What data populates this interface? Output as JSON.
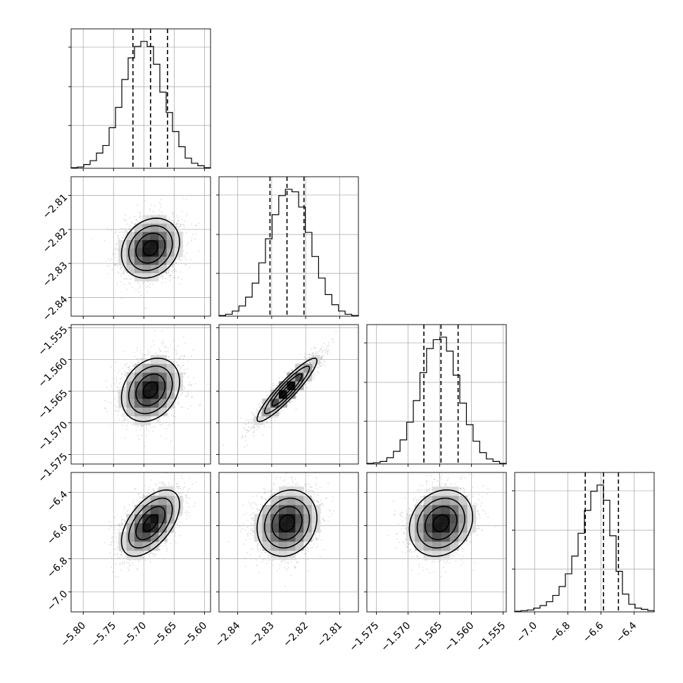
{
  "chart_data": {
    "type": "corner",
    "parameters": [
      {
        "range": [
          -5.82,
          -5.59
        ],
        "ticks": [
          -5.8,
          -5.75,
          -5.7,
          -5.65,
          -5.6
        ],
        "tick_labels": [
          "−5.80",
          "−5.75",
          "−5.70",
          "−5.65",
          "−5.60"
        ],
        "median": -5.689,
        "sigma": 0.024,
        "quantiles": [
          -5.718,
          -5.689,
          -5.661
        ],
        "histogram": [
          0.005,
          0.01,
          0.03,
          0.06,
          0.12,
          0.18,
          0.32,
          0.48,
          0.7,
          0.87,
          0.96,
          1.0,
          0.96,
          0.82,
          0.6,
          0.44,
          0.29,
          0.17,
          0.08,
          0.04,
          0.02,
          0.005
        ]
      },
      {
        "range": [
          -2.8455,
          -2.8045
        ],
        "ticks": [
          -2.84,
          -2.83,
          -2.82,
          -2.81
        ],
        "tick_labels": [
          "−2.84",
          "−2.83",
          "−2.82",
          "−2.81"
        ],
        "median": -2.8255,
        "sigma": 0.0044,
        "quantiles": [
          -2.8305,
          -2.8255,
          -2.8205
        ],
        "histogram": [
          0.005,
          0.015,
          0.04,
          0.08,
          0.15,
          0.26,
          0.42,
          0.61,
          0.8,
          0.95,
          1.0,
          0.98,
          0.86,
          0.66,
          0.47,
          0.3,
          0.17,
          0.09,
          0.04,
          0.015,
          0.005
        ]
      },
      {
        "range": [
          -1.5765,
          -1.5545
        ],
        "ticks": [
          -1.575,
          -1.57,
          -1.565,
          -1.56,
          -1.555
        ],
        "tick_labels": [
          "−1.575",
          "−1.570",
          "−1.565",
          "−1.560",
          "−1.555"
        ],
        "median": -1.5648,
        "sigma": 0.0025,
        "quantiles": [
          -1.5675,
          -1.5648,
          -1.5621
        ],
        "histogram": [
          0.005,
          0.01,
          0.02,
          0.05,
          0.1,
          0.19,
          0.33,
          0.5,
          0.72,
          0.91,
          0.98,
          1.0,
          0.89,
          0.7,
          0.48,
          0.31,
          0.18,
          0.09,
          0.04,
          0.02,
          0.005
        ]
      },
      {
        "range": [
          -7.12,
          -6.28
        ],
        "ticks": [
          -7.0,
          -6.8,
          -6.6,
          -6.4
        ],
        "tick_labels": [
          "−7.0",
          "−6.8",
          "−6.6",
          "−6.4"
        ],
        "median": -6.585,
        "sigma": 0.1,
        "quantiles": [
          -6.695,
          -6.585,
          -6.495
        ],
        "histogram": [
          0.005,
          0.01,
          0.015,
          0.03,
          0.05,
          0.08,
          0.13,
          0.2,
          0.3,
          0.44,
          0.62,
          0.8,
          0.95,
          1.0,
          0.88,
          0.6,
          0.32,
          0.14,
          0.06,
          0.03,
          0.02,
          0.01
        ]
      }
    ],
    "correlations": {
      "1-0": 0.2,
      "2-0": 0.25,
      "2-1": 0.92,
      "3-0": 0.55,
      "3-1": 0.15,
      "3-2": 0.18
    },
    "contour_levels_sigma": [
      0.5,
      1.0,
      1.5,
      2.0
    ],
    "grid": true
  }
}
